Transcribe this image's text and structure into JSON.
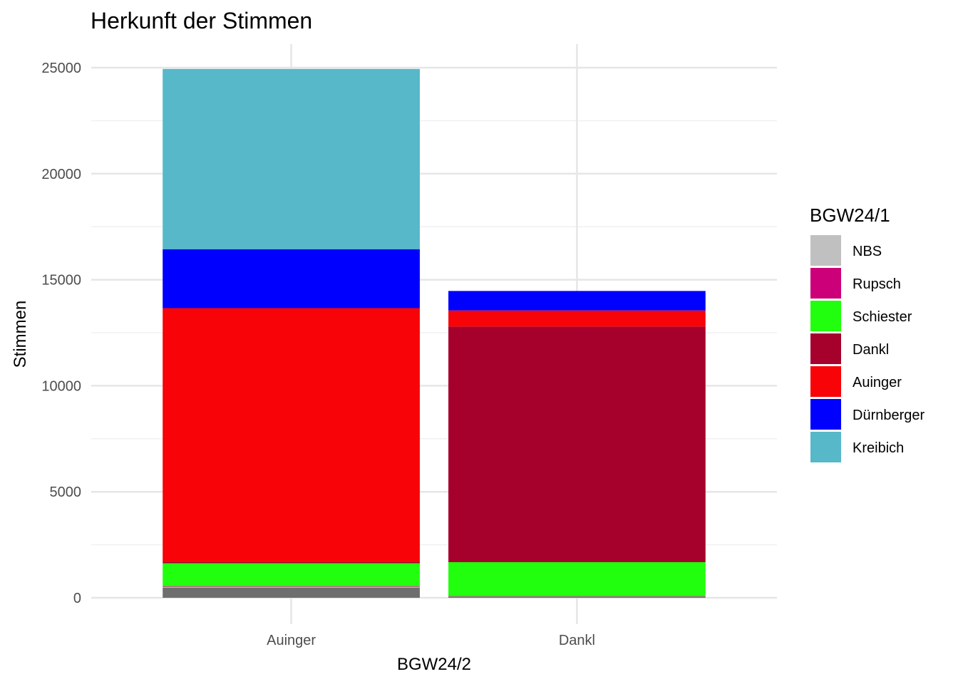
{
  "chart_data": {
    "type": "bar",
    "stacked": true,
    "title": "Herkunft der Stimmen",
    "xlabel": "BGW24/2",
    "ylabel": "Stimmen",
    "ylim": [
      0,
      26000
    ],
    "yticks": [
      0,
      5000,
      10000,
      15000,
      20000,
      25000
    ],
    "grid": true,
    "legend_position": "right",
    "legend_title": "BGW24/1",
    "categories": [
      "Auinger",
      "Dankl"
    ],
    "series": [
      {
        "name": "NA",
        "color": "#6e6e6e",
        "values": [
          480,
          60
        ],
        "in_legend": false
      },
      {
        "name": "NBS",
        "color": "#c0c0c0",
        "values": [
          40,
          10
        ],
        "in_legend": true
      },
      {
        "name": "Rupsch",
        "color": "#cc0078",
        "values": [
          30,
          10
        ],
        "in_legend": true
      },
      {
        "name": "Schiester",
        "color": "#22ff0e",
        "values": [
          1080,
          1600
        ],
        "in_legend": true
      },
      {
        "name": "Dankl",
        "color": "#a6002c",
        "values": [
          70,
          11110
        ],
        "in_legend": true
      },
      {
        "name": "Auinger",
        "color": "#f80308",
        "values": [
          11960,
          760
        ],
        "in_legend": true
      },
      {
        "name": "Dürnberger",
        "color": "#0000ff",
        "values": [
          2780,
          920
        ],
        "in_legend": true
      },
      {
        "name": "Kreibich",
        "color": "#56b8c9",
        "values": [
          8500,
          0
        ],
        "in_legend": true
      }
    ]
  }
}
